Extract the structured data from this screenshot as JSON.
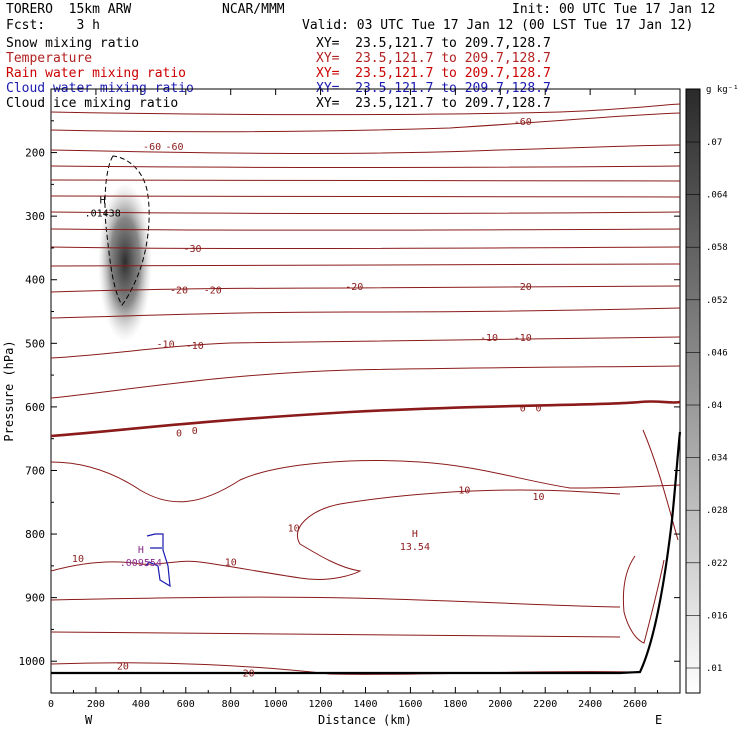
{
  "header": {
    "model": "TORERO  15km ARW",
    "center": "NCAR/MMM",
    "init": "Init: 00 UTC Tue 17 Jan 12",
    "fcst": "Fcst:    3 h",
    "valid": "Valid: 03 UTC Tue 17 Jan 12 (00 LST Tue 17 Jan 12)"
  },
  "legend": [
    {
      "label": "Snow mixing ratio",
      "xy": "XY=  23.5,121.7 to 209.7,128.7",
      "color": "#000000"
    },
    {
      "label": "Temperature",
      "xy": "XY=  23.5,121.7 to 209.7,128.7",
      "color": "#b22222"
    },
    {
      "label": "Rain water mixing ratio",
      "xy": "XY=  23.5,121.7 to 209.7,128.7",
      "color": "#cc0000"
    },
    {
      "label": "Cloud water mixing ratio",
      "xy": "XY=  23.5,121.7 to 209.7,128.7",
      "color": "#1a1ab0"
    },
    {
      "label": "Cloud ice mixing ratio",
      "xy": "XY=  23.5,121.7 to 209.7,128.7",
      "color": "#000000"
    }
  ],
  "chart_data": {
    "type": "cross-section contour",
    "xlabel": "Distance (km)",
    "ylabel": "Pressure (hPa)",
    "xlim": [
      0,
      2800
    ],
    "ylim": [
      1050,
      100
    ],
    "x_ticks": [
      0,
      200,
      400,
      600,
      800,
      1000,
      1200,
      1400,
      1600,
      1800,
      2000,
      2200,
      2400,
      2600
    ],
    "y_ticks": [
      200,
      300,
      400,
      500,
      600,
      700,
      800,
      900,
      1000
    ],
    "x_end_labels": {
      "left": "W",
      "right": "E"
    },
    "colorbar": {
      "unit": "g kg⁻¹",
      "ticks": [
        ".01",
        ".016",
        ".022",
        ".028",
        ".034",
        ".04",
        ".046",
        ".052",
        ".058",
        ".064",
        ".07"
      ]
    },
    "temperature_contour_labels": [
      {
        "text": "-60",
        "x": 2100,
        "p": 150
      },
      {
        "text": "-60",
        "x": 450,
        "p": 190
      },
      {
        "text": "-60",
        "x": 550,
        "p": 190
      },
      {
        "text": "-30",
        "x": 630,
        "p": 350
      },
      {
        "text": "-20",
        "x": 570,
        "p": 415
      },
      {
        "text": "-20",
        "x": 720,
        "p": 415
      },
      {
        "text": "-20",
        "x": 1350,
        "p": 410
      },
      {
        "text": "-20",
        "x": 2100,
        "p": 410
      },
      {
        "text": "-10",
        "x": 510,
        "p": 500
      },
      {
        "text": "-10",
        "x": 640,
        "p": 503
      },
      {
        "text": "-10",
        "x": 1950,
        "p": 490
      },
      {
        "text": "-10",
        "x": 2100,
        "p": 490
      },
      {
        "text": "0",
        "x": 570,
        "p": 640
      },
      {
        "text": "0",
        "x": 640,
        "p": 636
      },
      {
        "text": "0",
        "x": 2100,
        "p": 601
      },
      {
        "text": "0",
        "x": 2170,
        "p": 601
      },
      {
        "text": "10",
        "x": 1840,
        "p": 730
      },
      {
        "text": "10",
        "x": 2170,
        "p": 740
      },
      {
        "text": "10",
        "x": 1080,
        "p": 790
      },
      {
        "text": "10",
        "x": 120,
        "p": 838
      },
      {
        "text": "10",
        "x": 800,
        "p": 843
      },
      {
        "text": "20",
        "x": 320,
        "p": 1007
      },
      {
        "text": "20",
        "x": 880,
        "p": 1018
      }
    ],
    "maxima": [
      {
        "label": "H",
        "value": ".01438",
        "x": 230,
        "p": 280
      },
      {
        "label": "H",
        "value": "13.54",
        "x": 1620,
        "p": 805
      },
      {
        "label": "H",
        "value": ".009554",
        "x": 400,
        "p": 830
      }
    ]
  }
}
